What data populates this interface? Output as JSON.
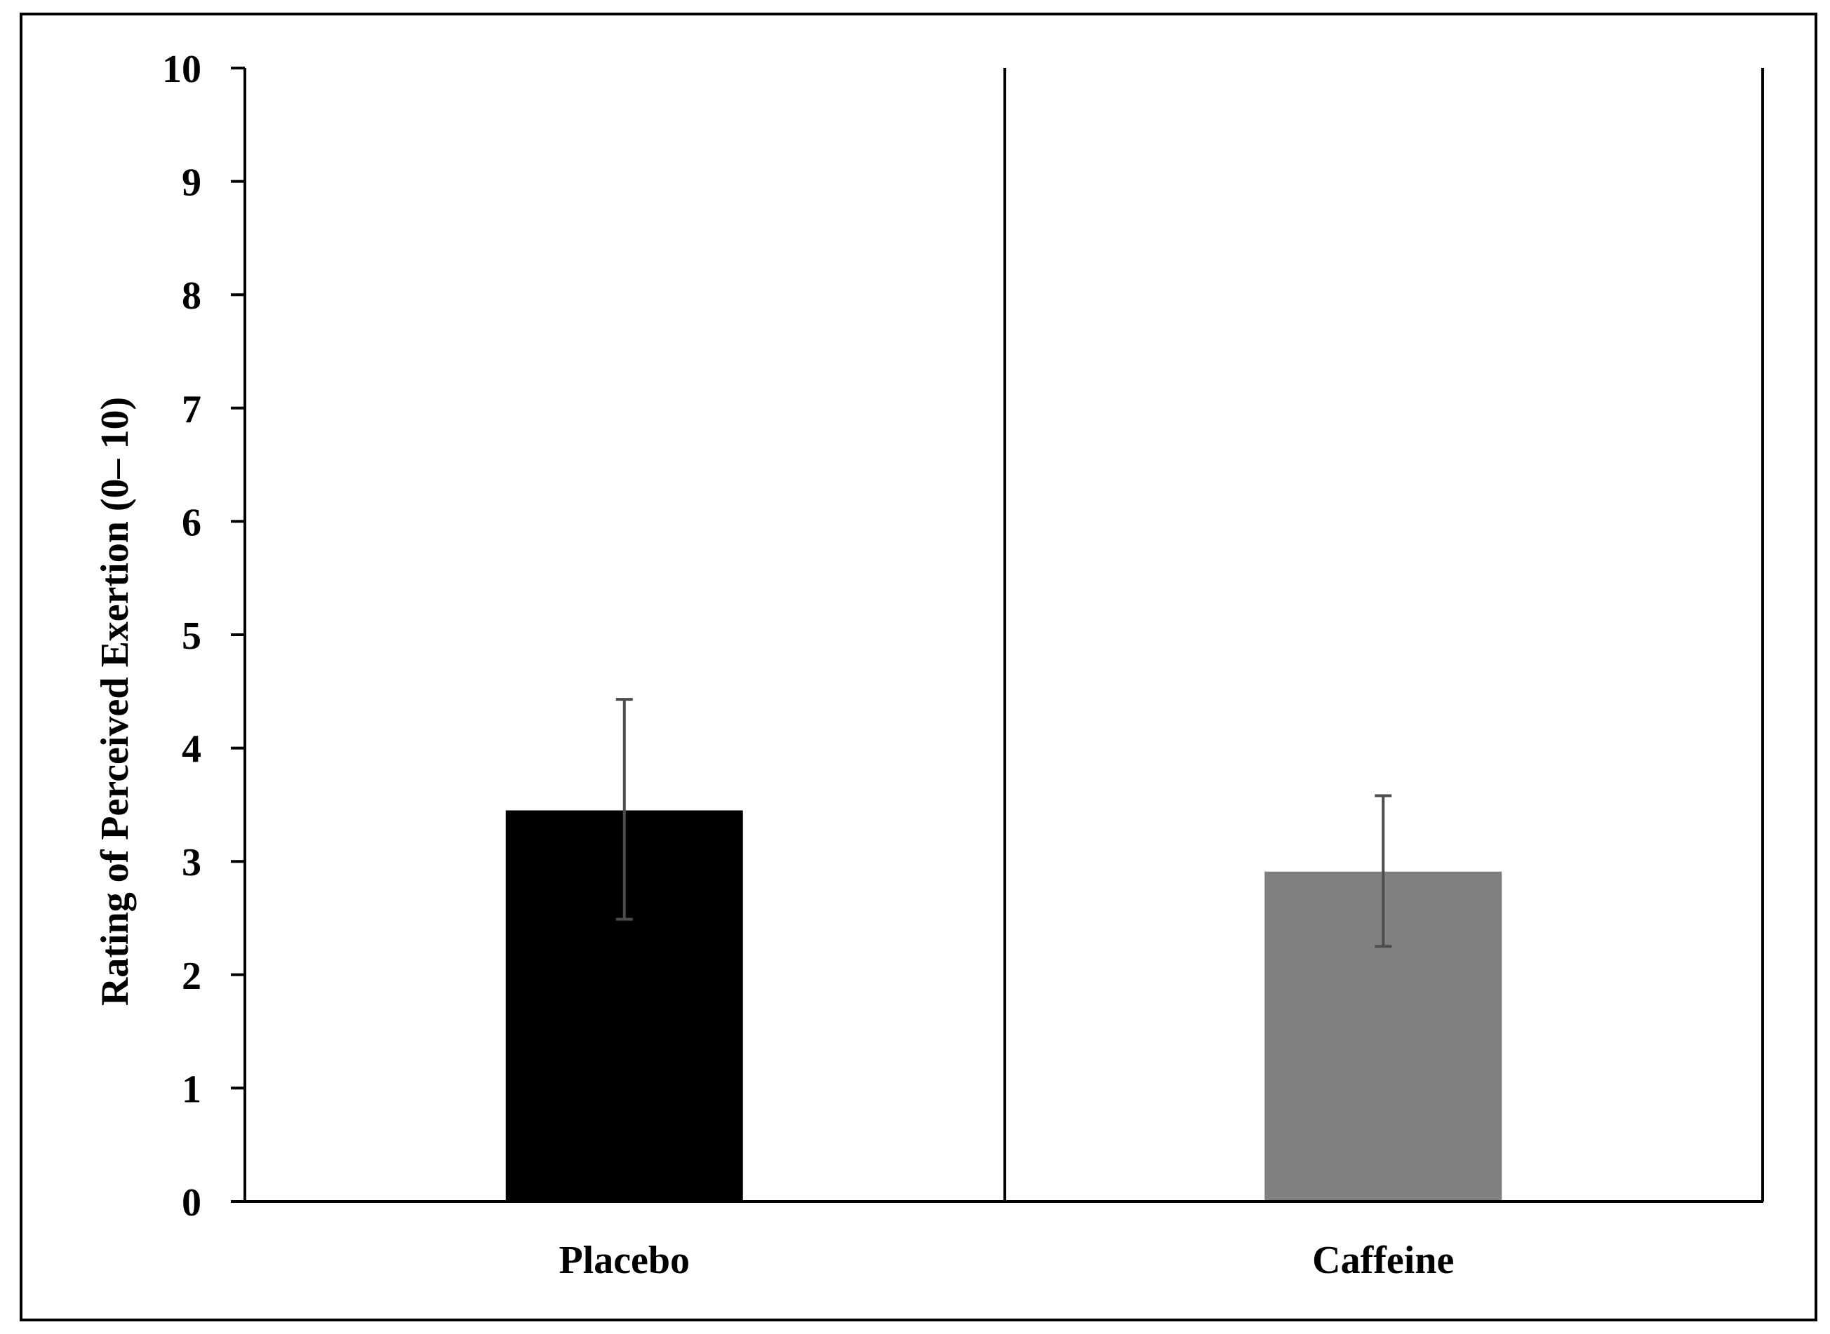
{
  "chart_data": {
    "type": "bar",
    "title": "",
    "xlabel": "",
    "ylabel": "Rating of Perceived Exertion (0– 10)",
    "ylim": [
      0,
      10
    ],
    "yticks": [
      "0",
      "1",
      "2",
      "3",
      "4",
      "5",
      "6",
      "7",
      "8",
      "9",
      "10"
    ],
    "categories": [
      "Placebo",
      "Caffeine"
    ],
    "values": [
      3.45,
      2.91
    ],
    "error_low": [
      2.49,
      2.25
    ],
    "error_high": [
      4.43,
      3.58
    ],
    "bar_colors": [
      "#000000",
      "#808080"
    ],
    "error_bar_color": "#4d4d4d",
    "grid": false,
    "legend": "none"
  }
}
